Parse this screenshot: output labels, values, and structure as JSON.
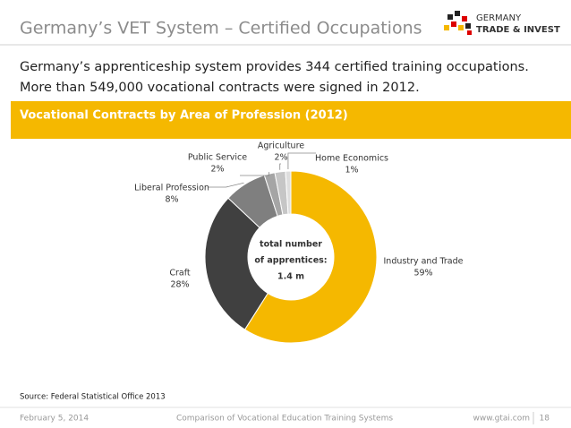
{
  "header": {
    "title": "Germany’s VET System – Certified Occupations",
    "logo": [
      "GERMANY",
      "TRADE & INVEST"
    ]
  },
  "intro": [
    "Germany’s apprenticeship system provides 344 certified training occupations.",
    "More than 549,000 vocational contracts were signed in 2012."
  ],
  "chart_data": {
    "type": "pie",
    "title": "Vocational Contracts by Area of Profession (2012)",
    "categories": [
      "Industry and Trade",
      "Craft",
      "Liberal Profession",
      "Public Service",
      "Agriculture",
      "Home Economics"
    ],
    "values": [
      59,
      28,
      8,
      2,
      2,
      1
    ],
    "value_labels": [
      "59%",
      "28%",
      "8%",
      "2%",
      "2%",
      "1%"
    ],
    "colors": [
      "#f5b800",
      "#404040",
      "#7f7f7f",
      "#a5a5a5",
      "#c6c6c6",
      "#dedede"
    ],
    "center_text": [
      "total number",
      "of apprentices:",
      "1.4 m"
    ]
  },
  "source": "Source: Federal Statistical Office 2013",
  "footer": {
    "date": "February 5, 2014",
    "subtitle": "Comparison of Vocational Education Training Systems",
    "url": "www.gtai.com",
    "page": "18"
  }
}
